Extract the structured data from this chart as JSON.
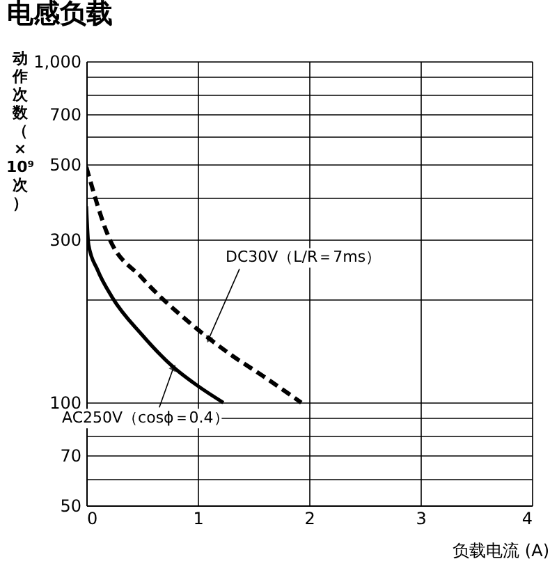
{
  "chart_data": {
    "type": "line",
    "title": "电感负载",
    "xlabel": "负载电流 (A)",
    "ylabel": "动作次数（×10⁹次）",
    "log": "y",
    "grid": true,
    "marker": "none",
    "xlim": [
      0,
      4
    ],
    "xticks": [
      0,
      1,
      2,
      3,
      4
    ],
    "ylim": [
      50,
      1000
    ],
    "yticks": [
      50,
      {
        "value": 60,
        "label": null
      },
      70,
      {
        "value": 80,
        "label": null
      },
      {
        "value": 90,
        "label": null
      },
      100,
      {
        "value": 200,
        "label": null
      },
      300,
      {
        "value": 400,
        "label": null
      },
      500,
      {
        "value": 600,
        "label": null
      },
      700,
      {
        "value": 800,
        "label": null
      },
      {
        "value": 900,
        "label": null
      },
      {
        "value": 1000,
        "label": "1,000"
      }
    ],
    "series": [
      {
        "color": "#000000",
        "line_style": "solid",
        "x": [
          0,
          0.02,
          0.1,
          0.23,
          0.5,
          0.77,
          1.0,
          1.23
        ],
        "values": [
          376,
          290,
          245,
          204,
          158,
          128,
          112,
          100
        ]
      },
      {
        "color": "#000000",
        "line_style": "dashed",
        "x": [
          0,
          0.2,
          0.5,
          0.95,
          1.3,
          1.58,
          1.93
        ],
        "values": [
          490,
          306,
          232,
          169,
          138,
          120,
          100
        ]
      }
    ],
    "annotations": [
      {
        "text": "DC30V（L/R＝7ms）",
        "x": 1.1,
        "y": 154
      },
      {
        "text": "AC250V（cosϕ＝0.4）",
        "x": 0.78,
        "y": 126
      }
    ]
  }
}
